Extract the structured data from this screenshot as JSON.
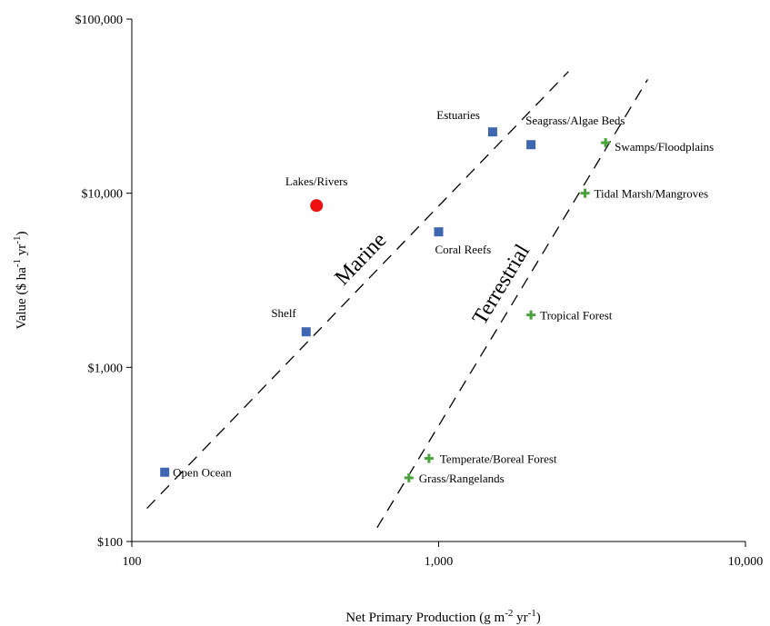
{
  "chart_data": {
    "type": "scatter",
    "xscale": "log",
    "yscale": "log",
    "xlim": [
      100,
      10000
    ],
    "ylim": [
      100,
      100000
    ],
    "x_ticks": [
      {
        "value": 100,
        "label": "100"
      },
      {
        "value": 1000,
        "label": "1,000"
      },
      {
        "value": 10000,
        "label": "10,000"
      }
    ],
    "y_ticks": [
      {
        "value": 100,
        "label": "$100"
      },
      {
        "value": 1000,
        "label": "$1,000"
      },
      {
        "value": 10000,
        "label": "$10,000"
      },
      {
        "value": 100000,
        "label": "$100,000"
      }
    ],
    "xlabel": {
      "text": "Net Primary Production (g m",
      "sup1": "-2",
      "mid": " yr",
      "sup2": "-1",
      "end": ")"
    },
    "ylabel": {
      "text": "Value ($ ha",
      "sup1": "-1",
      "mid": " yr",
      "sup2": "-1",
      "end": ")"
    },
    "grid": false,
    "series": [
      {
        "marker": "square",
        "color": "#3f66b0",
        "points": [
          {
            "label": "Open Ocean",
            "x": 128,
            "y": 250
          },
          {
            "label": "Shelf",
            "x": 370,
            "y": 1600
          },
          {
            "label": "Coral Reefs",
            "x": 1000,
            "y": 6000
          },
          {
            "label": "Estuaries",
            "x": 1500,
            "y": 22500
          },
          {
            "label": "Seagrass/Algae Beds",
            "x": 2000,
            "y": 19000
          }
        ]
      },
      {
        "marker": "circle",
        "color": "#ee1111",
        "points": [
          {
            "label": "Lakes/Rivers",
            "x": 400,
            "y": 8500
          }
        ]
      },
      {
        "marker": "plus",
        "color": "#4aa23a",
        "points": [
          {
            "label": "Grass/Rangelands",
            "x": 800,
            "y": 232
          },
          {
            "label": "Temperate/Boreal Forest",
            "x": 930,
            "y": 300
          },
          {
            "label": "Tropical Forest",
            "x": 2000,
            "y": 2000
          },
          {
            "label": "Tidal Marsh/Mangroves",
            "x": 3000,
            "y": 10000
          },
          {
            "label": "Swamps/Floodplains",
            "x": 3500,
            "y": 19500
          }
        ]
      }
    ],
    "trend_lines": [
      {
        "label": "Marine",
        "style": "dashed",
        "from": {
          "x": 112,
          "y": 155
        },
        "to": {
          "x": 2650,
          "y": 50000
        }
      },
      {
        "label": "Terrestrial",
        "style": "dashed",
        "from": {
          "x": 630,
          "y": 120
        },
        "to": {
          "x": 4800,
          "y": 45000
        }
      }
    ]
  }
}
